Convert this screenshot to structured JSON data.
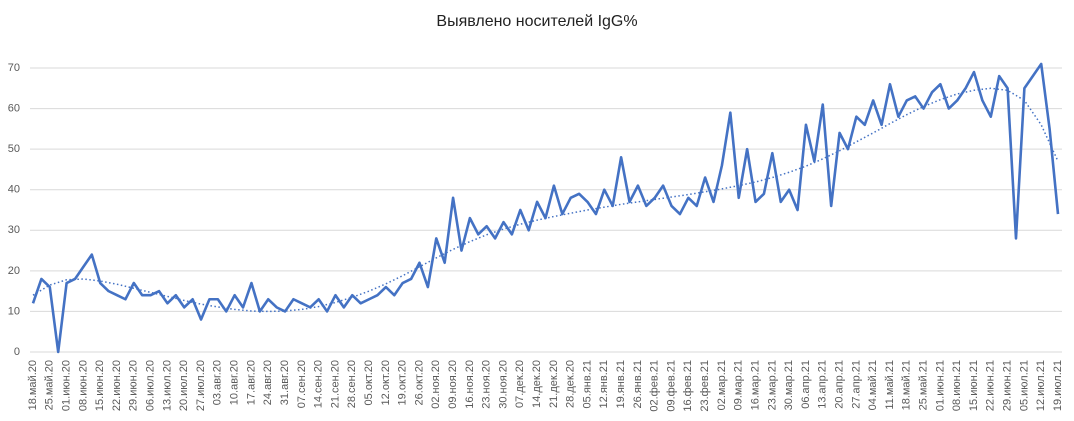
{
  "chart_data": {
    "type": "line",
    "title": "Выявлено носителей IgG%",
    "categories": [
      "18.май.20",
      null,
      "25.май.20",
      null,
      "01.июн.20",
      null,
      "08.июн.20",
      null,
      "15.июн.20",
      null,
      "22.июн.20",
      null,
      "29.июн.20",
      null,
      "06.июл.20",
      null,
      "13.июл.20",
      null,
      "20.июл.20",
      null,
      "27.июл.20",
      null,
      "03.авг.20",
      null,
      "10.авг.20",
      null,
      "17.авг.20",
      null,
      "24.авг.20",
      null,
      "31.авг.20",
      null,
      "07.сен.20",
      null,
      "14.сен.20",
      null,
      "21.сен.20",
      null,
      "28.сен.20",
      null,
      "05.окт.20",
      null,
      "12.окт.20",
      null,
      "19.окт.20",
      null,
      "26.окт.20",
      null,
      "02.ноя.20",
      null,
      "09.ноя.20",
      null,
      "16.ноя.20",
      null,
      "23.ноя.20",
      null,
      "30.ноя.20",
      null,
      "07.дек.20",
      null,
      "14.дек.20",
      null,
      "21.дек.20",
      null,
      "28.дек.20",
      null,
      "05.янв.21",
      null,
      "12.янв.21",
      null,
      "19.янв.21",
      null,
      "26.янв.21",
      null,
      "02.фев.21",
      null,
      "09.фев.21",
      null,
      "16.фев.21",
      null,
      "23.фев.21",
      null,
      "02.мар.21",
      null,
      "09.мар.21",
      null,
      "16.мар.21",
      null,
      "23.мар.21",
      null,
      "30.мар.21",
      null,
      "06.апр.21",
      null,
      "13.апр.21",
      null,
      "20.апр.21",
      null,
      "27.апр.21",
      null,
      "04.май.21",
      null,
      "11.май.21",
      null,
      "18.май.21",
      null,
      "25.май.21",
      null,
      "01.июн.21",
      null,
      "08.июн.21",
      null,
      "15.июн.21",
      null,
      "22.июн.21",
      null,
      "29.июн.21",
      null,
      "05.июл.21",
      null,
      "12.июл.21",
      null,
      "19.июл.21"
    ],
    "values": [
      12,
      18,
      16,
      0,
      17,
      18,
      21,
      24,
      17,
      15,
      14,
      13,
      17,
      14,
      14,
      15,
      12,
      14,
      11,
      13,
      8,
      13,
      13,
      10,
      14,
      11,
      17,
      10,
      13,
      11,
      10,
      13,
      12,
      11,
      13,
      10,
      14,
      11,
      14,
      12,
      13,
      14,
      16,
      14,
      17,
      18,
      22,
      16,
      28,
      22,
      38,
      25,
      33,
      29,
      31,
      28,
      32,
      29,
      35,
      30,
      37,
      33,
      41,
      34,
      38,
      39,
      37,
      34,
      40,
      36,
      48,
      37,
      41,
      36,
      38,
      41,
      36,
      34,
      38,
      36,
      43,
      37,
      46,
      59,
      38,
      50,
      37,
      39,
      49,
      37,
      40,
      35,
      56,
      47,
      61,
      36,
      54,
      50,
      58,
      56,
      62,
      56,
      66,
      58,
      62,
      63,
      60,
      64,
      66,
      60,
      62,
      65,
      69,
      62,
      58,
      68,
      65,
      28,
      65,
      68,
      71,
      55,
      34
    ],
    "color": "#4472c4",
    "trendline": {
      "style": "dotted",
      "color": "#4472c4",
      "values": [
        14,
        15.25,
        16.5,
        17.15,
        17.8,
        17.9,
        18,
        17.75,
        17.5,
        17.1,
        16.7,
        16.2,
        15.7,
        15.2,
        14.7,
        14.2,
        13.7,
        13.2,
        12.7,
        12.25,
        11.8,
        11.45,
        11.1,
        10.8,
        10.5,
        10.3,
        10.1,
        10.05,
        10,
        10.05,
        10.1,
        10.3,
        10.5,
        10.85,
        11.2,
        11.7,
        12.2,
        12.85,
        13.5,
        14.25,
        15,
        15.9,
        16.8,
        17.8,
        18.8,
        19.9,
        21,
        22.1,
        23.2,
        24.25,
        25.3,
        26.25,
        27.2,
        28.05,
        28.9,
        29.6,
        30.3,
        30.9,
        31.5,
        32,
        32.5,
        32.95,
        33.4,
        33.8,
        34.2,
        34.6,
        35,
        35.35,
        35.7,
        36.05,
        36.4,
        36.7,
        37,
        37.3,
        37.6,
        37.9,
        38.2,
        38.5,
        38.8,
        39.15,
        39.5,
        39.85,
        40.2,
        40.6,
        41,
        41.45,
        41.9,
        42.45,
        43,
        43.65,
        44.3,
        45.05,
        45.8,
        46.7,
        47.6,
        48.6,
        49.6,
        50.7,
        51.8,
        52.9,
        54,
        55.15,
        56.3,
        57.4,
        58.5,
        59.5,
        60.5,
        61.35,
        62.2,
        62.9,
        63.6,
        64.05,
        64.5,
        64.75,
        65,
        64.75,
        64.5,
        63.25,
        62,
        59,
        56,
        51.5,
        47
      ]
    },
    "ylim": [
      0,
      70
    ],
    "yticks": [
      0,
      10,
      20,
      30,
      40,
      50,
      60,
      70
    ],
    "grid": true
  }
}
